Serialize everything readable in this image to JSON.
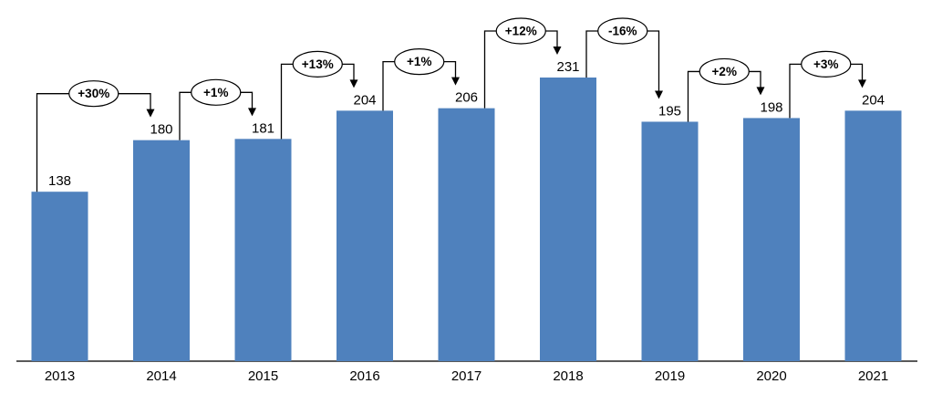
{
  "chart_data": {
    "type": "bar",
    "title": "",
    "xlabel": "",
    "ylabel": "",
    "categories": [
      "2013",
      "2014",
      "2015",
      "2016",
      "2017",
      "2018",
      "2019",
      "2020",
      "2021"
    ],
    "series": [
      {
        "name": "value",
        "values": [
          138,
          180,
          181,
          204,
          206,
          231,
          195,
          198,
          204
        ]
      }
    ],
    "changes": [
      "+30%",
      "+1%",
      "+13%",
      "+1%",
      "+12%",
      "-16%",
      "+2%",
      "+3%"
    ],
    "ylim": [
      0,
      290
    ],
    "grid": false,
    "legend": "none",
    "bar_color": "#4F81BD",
    "axis_color": "#595959",
    "text_color": "#000000",
    "annotation_color": "#000000",
    "bubble_fill": "#ffffff",
    "background": "#ffffff"
  }
}
